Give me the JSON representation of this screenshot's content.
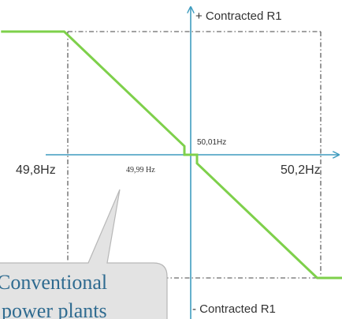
{
  "chart_data": {
    "type": "line",
    "title": "",
    "xlabel": "",
    "ylabel": "",
    "x_unit": "Hz",
    "y_unit": "fraction of contracted R1",
    "series": [
      {
        "color": "#7ed04b",
        "points": [
          {
            "x": 49.7,
            "y": 1.0
          },
          {
            "x": 49.8,
            "y": 1.0
          },
          {
            "x": 49.99,
            "y": 0.07
          },
          {
            "x": 49.99,
            "y": 0.0
          },
          {
            "x": 50.01,
            "y": 0.0
          },
          {
            "x": 50.01,
            "y": -0.07
          },
          {
            "x": 50.2,
            "y": -1.0
          },
          {
            "x": 50.3,
            "y": -1.0
          }
        ]
      }
    ],
    "axis_color": "#3f9cbf",
    "grid_color": "#444444",
    "labels": {
      "left_freq": "49,8Hz",
      "right_freq": "50,2Hz",
      "low_deadband": "49,99 Hz",
      "high_deadband": "50,01Hz",
      "y_top": "+ Contracted R1",
      "y_bottom": "- Contracted R1"
    },
    "callout": {
      "line1": "Conventional",
      "line2": "power plants",
      "fill": "#e3e3e3",
      "border": "#b7b7b7"
    }
  }
}
